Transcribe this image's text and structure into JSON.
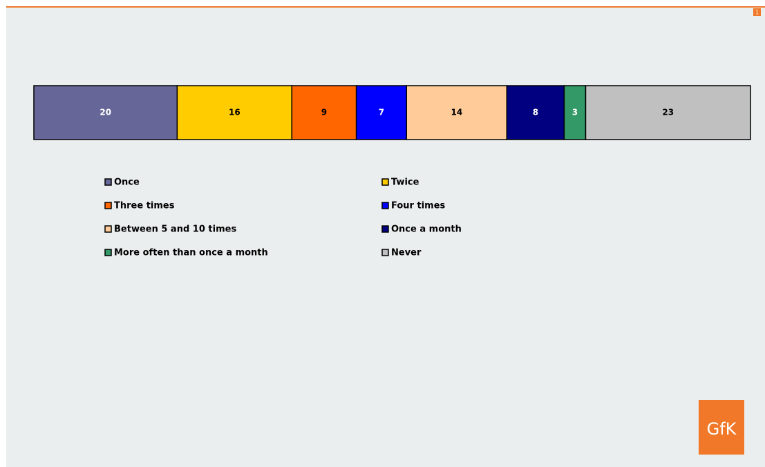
{
  "chart_data": {
    "type": "bar",
    "orientation": "horizontal",
    "stacked": true,
    "series": [
      {
        "name": "Once",
        "color": "#666699",
        "values": [
          20
        ]
      },
      {
        "name": "Twice",
        "color": "#ffcc00",
        "values": [
          16
        ]
      },
      {
        "name": "Three times",
        "color": "#ff6600",
        "values": [
          9
        ]
      },
      {
        "name": "Four times",
        "color": "#0000ff",
        "values": [
          7
        ]
      },
      {
        "name": "Between 5 and 10 times",
        "color": "#ffcc99",
        "values": [
          14
        ]
      },
      {
        "name": "Once a month",
        "color": "#000080",
        "values": [
          8
        ]
      },
      {
        "name": "More often than once a month",
        "color": "#339966",
        "values": [
          3
        ]
      },
      {
        "name": "Never",
        "color": "#c0c0c0",
        "values": [
          23
        ]
      }
    ]
  },
  "slide": {
    "page_number": "1",
    "logo": "GfK"
  }
}
